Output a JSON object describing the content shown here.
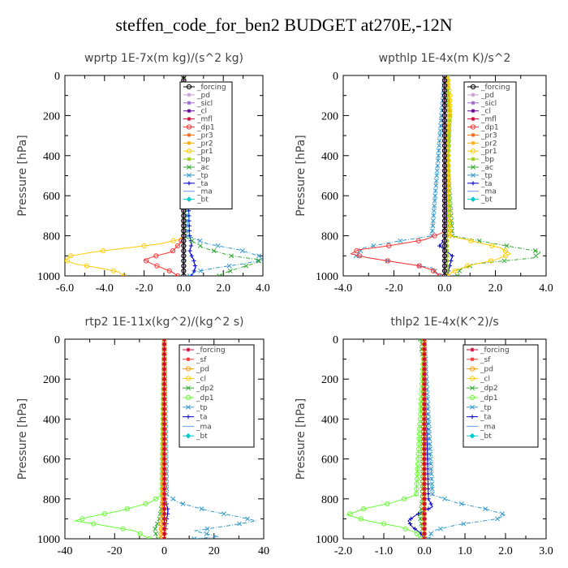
{
  "suptitle": "steffen_code_for_ben2  BUDGET at270E,-12N",
  "chart_data": [
    {
      "type": "line",
      "title": "wprtp  1E-7x(m kg)/(s^2 kg)",
      "ylabel": "Pressure [hPa]",
      "xlim": [
        -6,
        4
      ],
      "ylim": [
        1000,
        0
      ],
      "xticks": [
        "-6.0",
        "-4.0",
        "-2.0",
        "0.0",
        "2.0",
        "4.0"
      ],
      "yticks": [
        "0",
        "200",
        "400",
        "600",
        "800",
        "1000"
      ],
      "legend_position": "top-right",
      "series": [
        {
          "name": "_forcing",
          "color": "#000000",
          "marker": "o",
          "y": [
            0,
            100,
            200,
            300,
            400,
            500,
            600,
            700,
            800,
            900,
            1000
          ],
          "x": [
            0,
            0,
            0,
            0,
            0,
            0,
            0,
            0,
            0,
            0,
            0
          ]
        },
        {
          "name": "_pd",
          "color": "#c89bd6",
          "marker": "*",
          "y": [
            0,
            400,
            800,
            900,
            1000
          ],
          "x": [
            0,
            0,
            0,
            0,
            0
          ]
        },
        {
          "name": "_sicl",
          "color": "#9966cc",
          "marker": "*",
          "y": [
            0,
            400,
            800,
            900,
            1000
          ],
          "x": [
            0,
            0,
            0,
            0,
            0
          ]
        },
        {
          "name": "_cl",
          "color": "#660099",
          "marker": "*",
          "y": [
            0,
            400,
            800,
            900,
            1000
          ],
          "x": [
            0,
            0,
            0,
            0,
            0
          ]
        },
        {
          "name": "_mfl",
          "color": "#cc0033",
          "marker": "*",
          "y": [
            0,
            400,
            800,
            900,
            1000
          ],
          "x": [
            0,
            0,
            0,
            0,
            0
          ]
        },
        {
          "name": "_dp1",
          "color": "#ff3333",
          "marker": "o",
          "y": [
            0,
            800,
            840,
            880,
            900,
            920,
            940,
            960,
            980,
            1000
          ],
          "x": [
            0,
            0,
            -0.2,
            -0.6,
            -1.4,
            -2.0,
            -1.6,
            -1.1,
            -0.6,
            -0.3
          ]
        },
        {
          "name": "_pr3",
          "color": "#ff6600",
          "marker": "*",
          "y": [
            0,
            800,
            1000
          ],
          "x": [
            0,
            0,
            0
          ]
        },
        {
          "name": "_pr2",
          "color": "#ffaa00",
          "marker": "*",
          "y": [
            0,
            800,
            1000
          ],
          "x": [
            0,
            0,
            0
          ]
        },
        {
          "name": "_pr1",
          "color": "#ffcc00",
          "marker": "o",
          "y": [
            0,
            800,
            820,
            840,
            860,
            880,
            900,
            920,
            940,
            960,
            980,
            1000
          ],
          "x": [
            0,
            0,
            -0.3,
            -1.2,
            -2.8,
            -4.5,
            -5.7,
            -6.0,
            -5.5,
            -4.3,
            -3.3,
            -3.0
          ]
        },
        {
          "name": "_bp",
          "color": "#99cc00",
          "marker": "*",
          "y": [
            0,
            800,
            1000
          ],
          "x": [
            0,
            0,
            0
          ]
        },
        {
          "name": "_ac",
          "color": "#33aa33",
          "marker": "x",
          "y": [
            0,
            800,
            860,
            900,
            920,
            940,
            960,
            980,
            1000
          ],
          "x": [
            0,
            0,
            1.0,
            2.4,
            3.9,
            3.5,
            2.8,
            2.2,
            1.8
          ]
        },
        {
          "name": "_tp",
          "color": "#3399cc",
          "marker": "x",
          "y": [
            0,
            800,
            840,
            870,
            900,
            920,
            940,
            960,
            980,
            1000
          ],
          "x": [
            0,
            0.2,
            1.2,
            2.8,
            3.8,
            4.0,
            3.0,
            1.6,
            0.6,
            0.3
          ]
        },
        {
          "name": "_ta",
          "color": "#0000cc",
          "marker": "+",
          "y": [
            0,
            800,
            840,
            880,
            920,
            960,
            1000
          ],
          "x": [
            0,
            0.3,
            0.4,
            0.3,
            0.5,
            0.6,
            0.4
          ]
        },
        {
          "name": "_ma",
          "color": "#6699ff",
          "marker": "-",
          "y": [
            0,
            1000
          ],
          "x": [
            0,
            0
          ]
        },
        {
          "name": "_bt",
          "color": "#00cccc",
          "marker": "d",
          "y": [
            0,
            1000
          ],
          "x": [
            0,
            0
          ]
        }
      ]
    },
    {
      "type": "line",
      "title": "wpthlp  1E-4x(m K)/s^2",
      "ylabel": "Pressure [hPa]",
      "xlim": [
        -4,
        4
      ],
      "ylim": [
        1000,
        0
      ],
      "xticks": [
        "-4.0",
        "-2.0",
        "0.0",
        "2.0",
        "4.0"
      ],
      "yticks": [
        "0",
        "200",
        "400",
        "600",
        "800",
        "1000"
      ],
      "legend_position": "top-right",
      "series": [
        {
          "name": "_forcing",
          "color": "#000000",
          "marker": "o",
          "y": [
            0,
            1000
          ],
          "x": [
            0,
            0
          ]
        },
        {
          "name": "_pd",
          "color": "#c89bd6",
          "marker": "*",
          "y": [
            0,
            100,
            200,
            300,
            400,
            500,
            600,
            700,
            800,
            900,
            1000
          ],
          "x": [
            0,
            0,
            0,
            0,
            0,
            0,
            0,
            0,
            0,
            0,
            0
          ]
        },
        {
          "name": "_sicl",
          "color": "#9966cc",
          "marker": "*",
          "y": [
            0,
            1000
          ],
          "x": [
            0,
            0
          ]
        },
        {
          "name": "_cl",
          "color": "#660099",
          "marker": "*",
          "y": [
            0,
            1000
          ],
          "x": [
            0,
            0
          ]
        },
        {
          "name": "_mfl",
          "color": "#cc0033",
          "marker": "*",
          "y": [
            0,
            1000
          ],
          "x": [
            0,
            0
          ]
        },
        {
          "name": "_dp1",
          "color": "#ff3333",
          "marker": "o",
          "y": [
            0,
            780,
            820,
            850,
            870,
            890,
            910,
            930,
            950,
            970,
            1000
          ],
          "x": [
            0,
            0,
            -0.8,
            -2.2,
            -3.4,
            -3.7,
            -3.0,
            -2.0,
            -1.0,
            -0.5,
            -0.2
          ]
        },
        {
          "name": "_pr3",
          "color": "#ff6600",
          "marker": "*",
          "y": [
            0,
            1000
          ],
          "x": [
            0,
            0
          ]
        },
        {
          "name": "_pr2",
          "color": "#ffaa00",
          "marker": "*",
          "y": [
            0,
            1000
          ],
          "x": [
            0,
            0
          ]
        },
        {
          "name": "_pr1",
          "color": "#ffcc00",
          "marker": "o",
          "y": [
            0,
            100,
            200,
            300,
            800,
            830,
            860,
            890,
            920,
            950,
            980,
            1000
          ],
          "x": [
            0.1,
            0.2,
            0.2,
            0.1,
            0.2,
            1.2,
            2.2,
            2.6,
            2.0,
            0.9,
            0.3,
            0.1
          ]
        },
        {
          "name": "_bp",
          "color": "#99cc00",
          "marker": "*",
          "y": [
            0,
            100,
            200,
            800,
            1000
          ],
          "x": [
            0.1,
            0.1,
            0.2,
            0.1,
            0.1
          ]
        },
        {
          "name": "_ac",
          "color": "#33aa33",
          "marker": "x",
          "y": [
            0,
            200,
            400,
            800,
            840,
            880,
            910,
            940,
            970,
            1000
          ],
          "x": [
            0.1,
            0.2,
            0.1,
            0.3,
            2.0,
            3.8,
            3.5,
            1.2,
            0.6,
            0.5
          ]
        },
        {
          "name": "_tp",
          "color": "#3399cc",
          "marker": "x",
          "y": [
            0,
            800,
            830,
            860,
            900,
            930,
            960,
            1000
          ],
          "x": [
            0,
            -0.5,
            -2.0,
            -3.2,
            -3.5,
            -2.0,
            -0.5,
            -0.2
          ]
        },
        {
          "name": "_ta",
          "color": "#0000cc",
          "marker": "+",
          "y": [
            0,
            800,
            850,
            900,
            950,
            1000
          ],
          "x": [
            0,
            0.1,
            -0.2,
            0.3,
            0.2,
            0.1
          ]
        },
        {
          "name": "_ma",
          "color": "#6699ff",
          "marker": "-",
          "y": [
            0,
            1000
          ],
          "x": [
            0,
            0
          ]
        },
        {
          "name": "_bt",
          "color": "#00cccc",
          "marker": "d",
          "y": [
            0,
            1000
          ],
          "x": [
            0,
            0
          ]
        }
      ]
    },
    {
      "type": "line",
      "title": "rtp2  1E-11x(kg^2)/(kg^2 s)",
      "ylabel": "Pressure [hPa]",
      "xlim": [
        -40,
        40
      ],
      "ylim": [
        1000,
        0
      ],
      "xticks": [
        "-40",
        "-20",
        "0",
        "20",
        "40"
      ],
      "yticks": [
        "0",
        "200",
        "400",
        "600",
        "800",
        "1000"
      ],
      "legend_position": "top-right",
      "series": [
        {
          "name": "_forcing",
          "color": "#cc0033",
          "marker": "*",
          "y": [
            0,
            100,
            200,
            300,
            400,
            500,
            600,
            700,
            800,
            900,
            1000
          ],
          "x": [
            0,
            0,
            0,
            0,
            0,
            0,
            0,
            0,
            0,
            0,
            0
          ]
        },
        {
          "name": "_sf",
          "color": "#ff3333",
          "marker": "*",
          "y": [
            0,
            1000
          ],
          "x": [
            0,
            0
          ]
        },
        {
          "name": "_pd",
          "color": "#ff9900",
          "marker": "o",
          "y": [
            0,
            800,
            900,
            1000
          ],
          "x": [
            0,
            -0.5,
            -1.0,
            -1.5
          ]
        },
        {
          "name": "_cl",
          "color": "#ffcc00",
          "marker": "o",
          "y": [
            0,
            1000
          ],
          "x": [
            0,
            0
          ]
        },
        {
          "name": "_dp2",
          "color": "#33aa33",
          "marker": "x",
          "y": [
            0,
            800,
            900,
            960,
            1000
          ],
          "x": [
            0,
            -0.5,
            -2.0,
            -4.0,
            -2.5
          ]
        },
        {
          "name": "_dp1",
          "color": "#66ff33",
          "marker": "o",
          "y": [
            0,
            780,
            820,
            860,
            890,
            910,
            930,
            960,
            1000
          ],
          "x": [
            0,
            -1,
            -6,
            -18,
            -30,
            -36,
            -26,
            -12,
            -6
          ]
        },
        {
          "name": "_tp",
          "color": "#3399cc",
          "marker": "x",
          "y": [
            0,
            780,
            820,
            860,
            890,
            910,
            930,
            960,
            990,
            1000
          ],
          "x": [
            0,
            1,
            6,
            18,
            30,
            37,
            28,
            12,
            22,
            12
          ]
        },
        {
          "name": "_ta",
          "color": "#0000cc",
          "marker": "+",
          "y": [
            0,
            800,
            860,
            900,
            960,
            1000
          ],
          "x": [
            0,
            0.5,
            1.5,
            1.0,
            0.5,
            0.3
          ]
        },
        {
          "name": "_ma",
          "color": "#6699ff",
          "marker": "-",
          "y": [
            0,
            1000
          ],
          "x": [
            0,
            0
          ]
        },
        {
          "name": "_bt",
          "color": "#00cccc",
          "marker": "d",
          "y": [
            0,
            1000
          ],
          "x": [
            0,
            0
          ]
        }
      ]
    },
    {
      "type": "line",
      "title": "thlp2  1E-4x(K^2)/s",
      "ylabel": "Pressure [hPa]",
      "xlim": [
        -2,
        3
      ],
      "ylim": [
        1000,
        0
      ],
      "xticks": [
        "-2.0",
        "-1.0",
        "0.0",
        "1.0",
        "2.0",
        "3.0"
      ],
      "yticks": [
        "0",
        "200",
        "400",
        "600",
        "800",
        "1000"
      ],
      "legend_position": "top-right",
      "series": [
        {
          "name": "_forcing",
          "color": "#cc0033",
          "marker": "*",
          "y": [
            0,
            100,
            200,
            300,
            400,
            500,
            600,
            700,
            800,
            900,
            1000
          ],
          "x": [
            0,
            0,
            0,
            0,
            0,
            0,
            0,
            0,
            0,
            0,
            0
          ]
        },
        {
          "name": "_sf",
          "color": "#ff3333",
          "marker": "*",
          "y": [
            0,
            1000
          ],
          "x": [
            0,
            0
          ]
        },
        {
          "name": "_pd",
          "color": "#ff9900",
          "marker": "o",
          "y": [
            0,
            1000
          ],
          "x": [
            0,
            0
          ]
        },
        {
          "name": "_cl",
          "color": "#ffcc00",
          "marker": "o",
          "y": [
            0,
            1000
          ],
          "x": [
            0,
            0
          ]
        },
        {
          "name": "_dp2",
          "color": "#33aa33",
          "marker": "x",
          "y": [
            0,
            30,
            60,
            100,
            800,
            900,
            1000
          ],
          "x": [
            -0.1,
            -0.05,
            -0.08,
            0,
            -0.05,
            -0.1,
            0
          ]
        },
        {
          "name": "_dp1",
          "color": "#66ff33",
          "marker": "o",
          "y": [
            0,
            780,
            820,
            850,
            880,
            910,
            940,
            970,
            1000
          ],
          "x": [
            0,
            -0.2,
            -0.8,
            -1.5,
            -1.9,
            -1.4,
            -0.6,
            -0.2,
            -0.1
          ]
        },
        {
          "name": "_tp",
          "color": "#3399cc",
          "marker": "x",
          "y": [
            0,
            780,
            820,
            850,
            880,
            900,
            930,
            960,
            1000
          ],
          "x": [
            0,
            0.2,
            0.8,
            1.5,
            2.0,
            1.8,
            0.8,
            0.2,
            0.1
          ]
        },
        {
          "name": "_ta",
          "color": "#0000cc",
          "marker": "+",
          "y": [
            0,
            800,
            840,
            880,
            910,
            940,
            970,
            1000
          ],
          "x": [
            0,
            0.1,
            0.2,
            -0.2,
            -0.4,
            -0.3,
            -0.1,
            0
          ]
        },
        {
          "name": "_ma",
          "color": "#6699ff",
          "marker": "-",
          "y": [
            0,
            1000
          ],
          "x": [
            0,
            0
          ]
        },
        {
          "name": "_bt",
          "color": "#00cccc",
          "marker": "d",
          "y": [
            0,
            1000
          ],
          "x": [
            0,
            0
          ]
        }
      ]
    }
  ]
}
